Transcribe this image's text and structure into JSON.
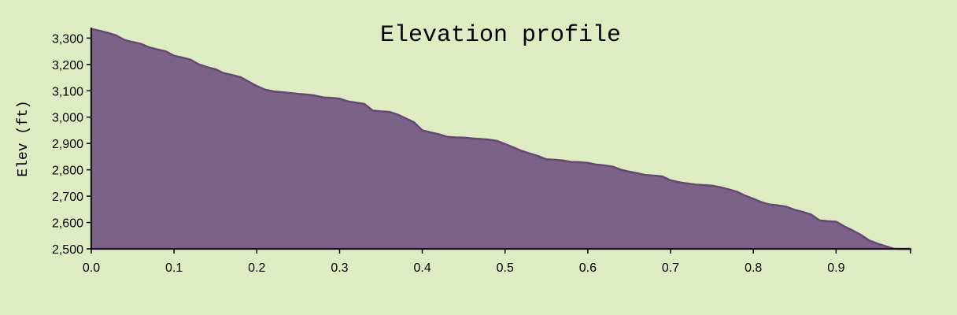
{
  "chart_data": {
    "type": "area",
    "title": "Elevation profile",
    "xlabel": "",
    "ylabel": "Elev (ft)",
    "xlim": [
      0,
      0.99
    ],
    "ylim": [
      2500,
      3340
    ],
    "grid": false,
    "legend": "none",
    "colors": {
      "background": "#dfecc3",
      "fill": "#7b6289",
      "line": "#624a73"
    },
    "x_ticks": [
      {
        "value": 0.0,
        "label": "0.0"
      },
      {
        "value": 0.1,
        "label": "0.1"
      },
      {
        "value": 0.2,
        "label": "0.2"
      },
      {
        "value": 0.3,
        "label": "0.3"
      },
      {
        "value": 0.4,
        "label": "0.4"
      },
      {
        "value": 0.5,
        "label": "0.5"
      },
      {
        "value": 0.6,
        "label": "0.6"
      },
      {
        "value": 0.7,
        "label": "0.7"
      },
      {
        "value": 0.8,
        "label": "0.8"
      },
      {
        "value": 0.9,
        "label": "0.9"
      }
    ],
    "y_ticks": [
      {
        "value": 2500,
        "label": "2,500"
      },
      {
        "value": 2600,
        "label": "2,600"
      },
      {
        "value": 2700,
        "label": "2,700"
      },
      {
        "value": 2800,
        "label": "2,800"
      },
      {
        "value": 2900,
        "label": "2,900"
      },
      {
        "value": 3000,
        "label": "3,000"
      },
      {
        "value": 3100,
        "label": "3,100"
      },
      {
        "value": 3200,
        "label": "3,200"
      },
      {
        "value": 3300,
        "label": "3,300"
      }
    ],
    "x": [
      0.0,
      0.01,
      0.02,
      0.03,
      0.04,
      0.05,
      0.06,
      0.07,
      0.08,
      0.09,
      0.1,
      0.11,
      0.12,
      0.13,
      0.14,
      0.15,
      0.16,
      0.17,
      0.18,
      0.19,
      0.2,
      0.21,
      0.22,
      0.23,
      0.24,
      0.25,
      0.26,
      0.27,
      0.28,
      0.29,
      0.3,
      0.31,
      0.32,
      0.33,
      0.34,
      0.35,
      0.36,
      0.37,
      0.38,
      0.39,
      0.4,
      0.41,
      0.42,
      0.43,
      0.44,
      0.45,
      0.46,
      0.47,
      0.48,
      0.49,
      0.5,
      0.51,
      0.52,
      0.53,
      0.54,
      0.55,
      0.56,
      0.57,
      0.58,
      0.59,
      0.6,
      0.61,
      0.62,
      0.63,
      0.64,
      0.65,
      0.66,
      0.67,
      0.68,
      0.69,
      0.7,
      0.71,
      0.72,
      0.73,
      0.74,
      0.75,
      0.76,
      0.77,
      0.78,
      0.79,
      0.8,
      0.81,
      0.82,
      0.83,
      0.84,
      0.85,
      0.86,
      0.87,
      0.88,
      0.89,
      0.9,
      0.91,
      0.92,
      0.93,
      0.94,
      0.95,
      0.96,
      0.97,
      0.98,
      0.99
    ],
    "y": [
      3335,
      3328,
      3320,
      3310,
      3293,
      3285,
      3278,
      3265,
      3257,
      3250,
      3233,
      3226,
      3218,
      3200,
      3190,
      3182,
      3167,
      3160,
      3152,
      3135,
      3118,
      3104,
      3098,
      3095,
      3092,
      3088,
      3086,
      3082,
      3075,
      3073,
      3070,
      3060,
      3055,
      3050,
      3025,
      3022,
      3020,
      3010,
      2995,
      2980,
      2950,
      2942,
      2935,
      2925,
      2923,
      2922,
      2919,
      2917,
      2915,
      2910,
      2898,
      2885,
      2872,
      2862,
      2852,
      2840,
      2838,
      2835,
      2830,
      2829,
      2826,
      2820,
      2817,
      2812,
      2800,
      2793,
      2787,
      2780,
      2778,
      2775,
      2760,
      2753,
      2748,
      2744,
      2742,
      2740,
      2734,
      2726,
      2717,
      2702,
      2690,
      2677,
      2668,
      2665,
      2660,
      2648,
      2640,
      2630,
      2608,
      2605,
      2603,
      2585,
      2570,
      2553,
      2532,
      2520,
      2510,
      2500,
      2499,
      2499
    ]
  }
}
